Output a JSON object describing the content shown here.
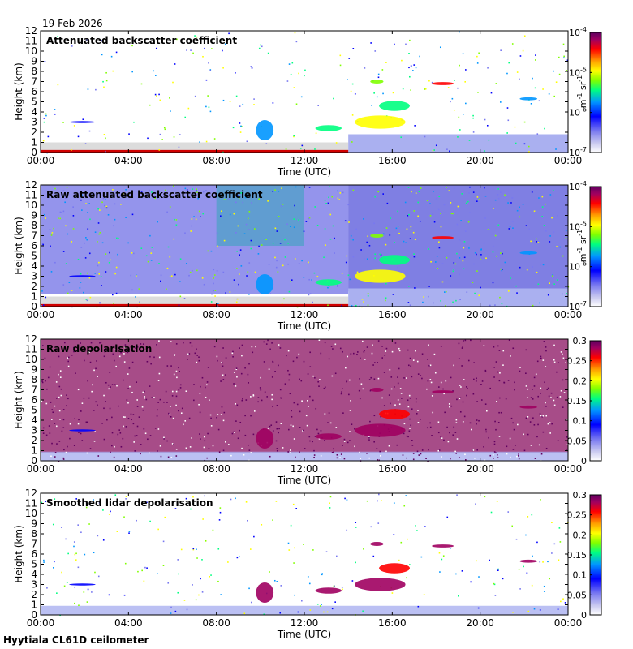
{
  "date_label": "19 Feb 2026",
  "footer": "Hyytiala CL61D ceilometer",
  "chart_data": [
    {
      "type": "heatmap",
      "title": "Attenuated backscatter coefficient",
      "xlabel": "Time (UTC)",
      "ylabel": "Height (km)",
      "x_ticks": [
        "00:00",
        "04:00",
        "08:00",
        "12:00",
        "16:00",
        "20:00",
        "00:00"
      ],
      "y_ticks": [
        "0",
        "1",
        "2",
        "3",
        "4",
        "5",
        "6",
        "7",
        "8",
        "9",
        "10",
        "11",
        "12"
      ],
      "xlim": [
        0,
        24
      ],
      "ylim": [
        0,
        12
      ],
      "colorbar": {
        "scale": "log",
        "ticks": [
          "10-7",
          "10-6",
          "10-5",
          "10-4"
        ],
        "tick_base": "10",
        "tick_exponents": [
          "-7",
          "-6",
          "-5",
          "-4"
        ],
        "unit": "m-1 sr-1",
        "unit_parts": [
          "m",
          "-1",
          " sr",
          "-1"
        ]
      },
      "colormap": [
        "#ffffff",
        "#c8c8f0",
        "#7878f0",
        "#0000ff",
        "#0096ff",
        "#00ff80",
        "#80ff00",
        "#ffff00",
        "#ffa000",
        "#ff0000",
        "#a00060",
        "#600060"
      ]
    },
    {
      "type": "heatmap",
      "title": "Raw attenuated backscatter coefficient",
      "xlabel": "Time (UTC)",
      "ylabel": "Height (km)",
      "x_ticks": [
        "00:00",
        "04:00",
        "08:00",
        "12:00",
        "16:00",
        "20:00",
        "00:00"
      ],
      "y_ticks": [
        "0",
        "1",
        "2",
        "3",
        "4",
        "5",
        "6",
        "7",
        "8",
        "9",
        "10",
        "11",
        "12"
      ],
      "xlim": [
        0,
        24
      ],
      "ylim": [
        0,
        12
      ],
      "colorbar": {
        "scale": "log",
        "ticks": [
          "10-7",
          "10-6",
          "10-5",
          "10-4"
        ],
        "tick_base": "10",
        "tick_exponents": [
          "-7",
          "-6",
          "-5",
          "-4"
        ],
        "unit": "m-1 sr-1",
        "unit_parts": [
          "m",
          "-1",
          " sr",
          "-1"
        ]
      },
      "colormap": [
        "#ffffff",
        "#c8c8f0",
        "#7878f0",
        "#0000ff",
        "#0096ff",
        "#00ff80",
        "#80ff00",
        "#ffff00",
        "#ffa000",
        "#ff0000",
        "#a00060",
        "#600060"
      ]
    },
    {
      "type": "heatmap",
      "title": "Raw depolarisation",
      "xlabel": "Time (UTC)",
      "ylabel": "Height (km)",
      "x_ticks": [
        "00:00",
        "04:00",
        "08:00",
        "12:00",
        "16:00",
        "20:00",
        "00:00"
      ],
      "y_ticks": [
        "0",
        "1",
        "2",
        "3",
        "4",
        "5",
        "6",
        "7",
        "8",
        "9",
        "10",
        "11",
        "12"
      ],
      "xlim": [
        0,
        24
      ],
      "ylim": [
        0,
        12
      ],
      "colorbar": {
        "scale": "linear",
        "ticks": [
          "0",
          "0.05",
          "0.1",
          "0.15",
          "0.2",
          "0.25",
          "0.3"
        ],
        "range": [
          0,
          0.3
        ]
      },
      "colormap": [
        "#ffffff",
        "#c8c8f0",
        "#7878f0",
        "#0000ff",
        "#0096ff",
        "#00ff80",
        "#80ff00",
        "#ffff00",
        "#ffa000",
        "#ff0000",
        "#a00060",
        "#600060"
      ]
    },
    {
      "type": "heatmap",
      "title": "Smoothed lidar depolarisation",
      "xlabel": "Time (UTC)",
      "ylabel": "Height (km)",
      "x_ticks": [
        "00:00",
        "04:00",
        "08:00",
        "12:00",
        "16:00",
        "20:00",
        "00:00"
      ],
      "y_ticks": [
        "0",
        "1",
        "2",
        "3",
        "4",
        "5",
        "6",
        "7",
        "8",
        "9",
        "10",
        "11",
        "12"
      ],
      "xlim": [
        0,
        24
      ],
      "ylim": [
        0,
        12
      ],
      "colorbar": {
        "scale": "linear",
        "ticks": [
          "0",
          "0.05",
          "0.1",
          "0.15",
          "0.2",
          "0.25",
          "0.3"
        ],
        "range": [
          0,
          0.3
        ]
      },
      "colormap": [
        "#ffffff",
        "#c8c8f0",
        "#7878f0",
        "#0000ff",
        "#0096ff",
        "#00ff80",
        "#80ff00",
        "#ffff00",
        "#ffa000",
        "#ff0000",
        "#a00060",
        "#600060"
      ]
    }
  ]
}
